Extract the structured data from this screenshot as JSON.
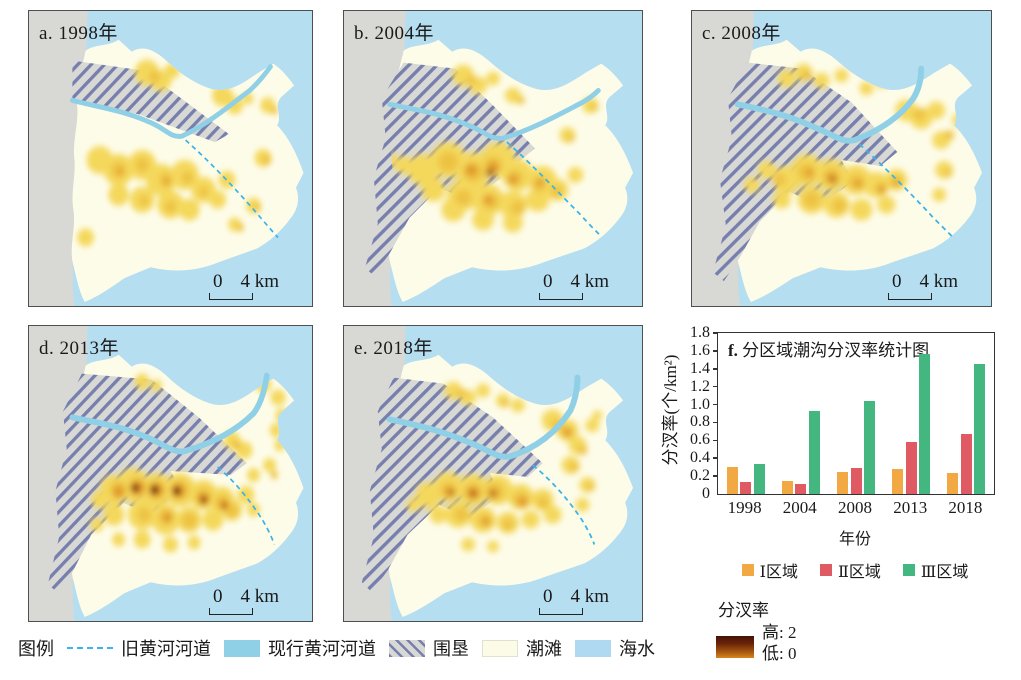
{
  "panels": [
    {
      "label": "a. 1998年",
      "scale": {
        "zero": "0",
        "dist": "4 km"
      }
    },
    {
      "label": "b. 2004年",
      "scale": {
        "zero": "0",
        "dist": "4 km"
      }
    },
    {
      "label": "c. 2008年",
      "scale": {
        "zero": "0",
        "dist": "4 km"
      }
    },
    {
      "label": "d. 2013年",
      "scale": {
        "zero": "0",
        "dist": "4 km"
      }
    },
    {
      "label": "e. 2018年",
      "scale": {
        "zero": "0",
        "dist": "4 km"
      }
    }
  ],
  "chart_data": {
    "type": "bar",
    "title_prefix": "f.",
    "title": "f. 分区域潮沟分汊率统计图",
    "title_text": "分区域潮沟分汊率统计图",
    "categories": [
      "1998",
      "2004",
      "2008",
      "2013",
      "2018"
    ],
    "series": [
      {
        "name": "Ⅰ区域",
        "color": "#f2a843",
        "values": [
          0.3,
          0.15,
          0.25,
          0.28,
          0.24
        ]
      },
      {
        "name": "Ⅱ区域",
        "color": "#e05a64",
        "values": [
          0.13,
          0.11,
          0.29,
          0.58,
          0.67
        ]
      },
      {
        "name": "Ⅲ区域",
        "color": "#43b77f",
        "values": [
          0.34,
          0.93,
          1.04,
          1.57,
          1.45
        ]
      }
    ],
    "xlabel": "年份",
    "ylabel": "分汊率(个/km²)",
    "ylim": [
      0,
      1.8
    ],
    "ytick_step": 0.2,
    "grid": false,
    "legend_position": "bottom"
  },
  "density_legend": {
    "title": "分汊率",
    "high_label": "高: 2",
    "low_label": "低: 0",
    "high_color": "#441208",
    "low_color": "#d8861a"
  },
  "map_legend": {
    "title": "图例",
    "items": [
      {
        "label": "旧黄河河道",
        "type": "dashed-line",
        "color": "#3ab4e8"
      },
      {
        "label": "现行黄河河道",
        "type": "fill",
        "color": "#8fd0e6"
      },
      {
        "label": "围垦",
        "type": "hatch",
        "color": "#767fae"
      },
      {
        "label": "潮滩",
        "type": "fill",
        "color": "#fcfbe8"
      },
      {
        "label": "海水",
        "type": "fill",
        "color": "#aed9f0"
      }
    ]
  },
  "map_colors": {
    "sea": "#b5def1",
    "mainland": "#d8d8d5",
    "tidal_flat": "#fdfce9",
    "river": "#8fd0e6",
    "old_channel": "#3ab4e8",
    "heat_low": "#f4d85c",
    "heat_high": "#441303"
  }
}
